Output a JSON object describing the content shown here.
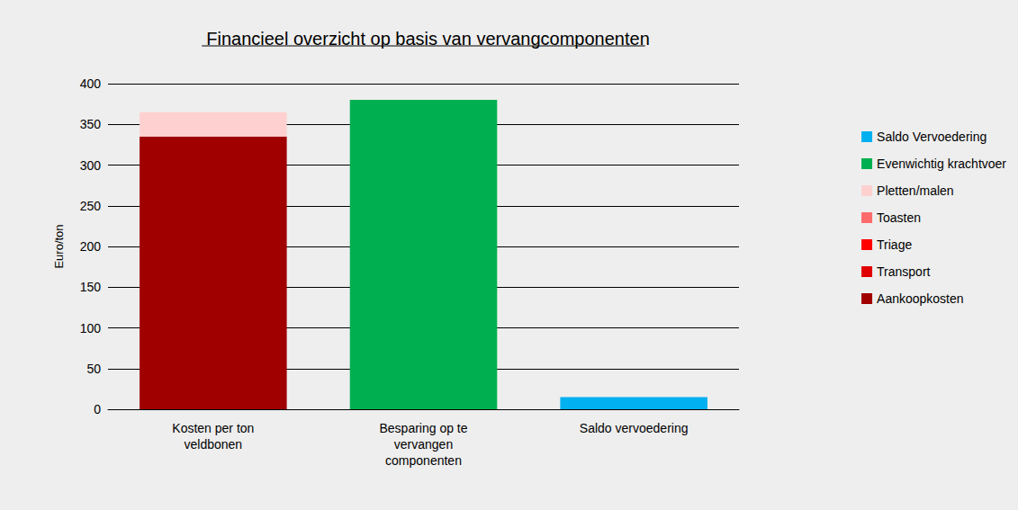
{
  "chart_data": {
    "type": "bar",
    "stacked": true,
    "title": "Financieel overzicht op basis van vervangcomponenten",
    "y_label": "Euro/ton",
    "categories": [
      "Kosten per ton veldbonen",
      "Besparing op te vervangen componenten",
      "Saldo vervoedering"
    ],
    "series": [
      {
        "name": "Aankoopkosten",
        "color": "#a00000",
        "values": [
          335,
          0,
          0
        ]
      },
      {
        "name": "Transport",
        "color": "#e00000",
        "values": [
          0,
          0,
          0
        ]
      },
      {
        "name": "Triage",
        "color": "#ff0000",
        "values": [
          0,
          0,
          0
        ]
      },
      {
        "name": "Toasten",
        "color": "#ff6b6b",
        "values": [
          0,
          0,
          0
        ]
      },
      {
        "name": "Pletten/malen",
        "color": "#ffd0d0",
        "values": [
          30,
          0,
          0
        ]
      },
      {
        "name": "Evenwichtig krachtvoer",
        "color": "#00b050",
        "values": [
          0,
          380,
          0
        ]
      },
      {
        "name": "Saldo Vervoedering",
        "color": "#00b0f0",
        "values": [
          0,
          0,
          15
        ]
      }
    ],
    "ylim": [
      0,
      400
    ],
    "yticks": [
      0,
      50,
      100,
      150,
      200,
      250,
      300,
      350,
      400
    ],
    "grid": true,
    "legend": "right"
  }
}
